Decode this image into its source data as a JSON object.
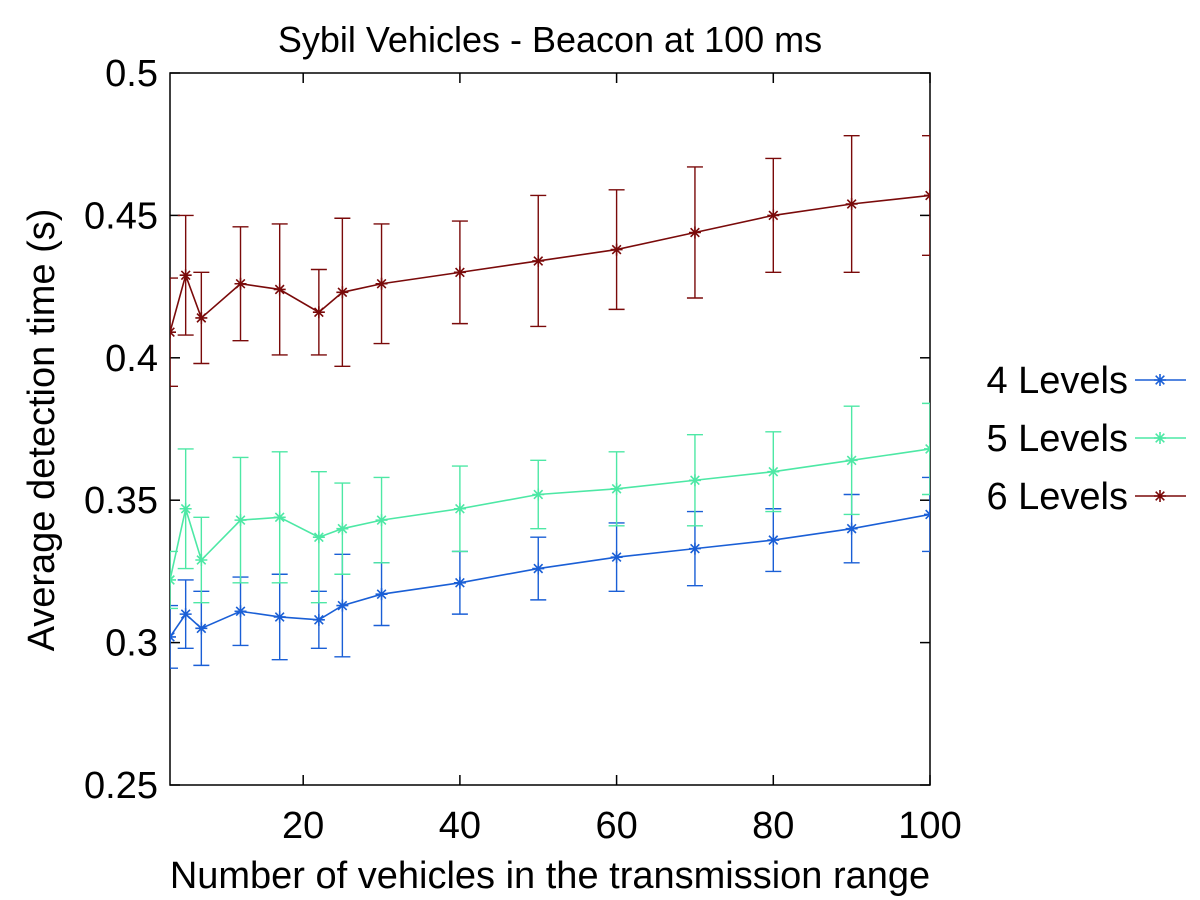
{
  "chart_data": {
    "type": "line",
    "title": "Sybil Vehicles - Beacon at 100 ms",
    "xlabel": "Number of vehicles in the transmission range",
    "ylabel": "Average detection time (s)",
    "xlim": [
      3,
      100
    ],
    "ylim": [
      0.25,
      0.5
    ],
    "x_ticks": [
      20,
      40,
      60,
      80,
      100
    ],
    "y_ticks": [
      0.25,
      0.3,
      0.35,
      0.4,
      0.45,
      0.5
    ],
    "x_tick_labels": [
      "20",
      "40",
      "60",
      "80",
      "100"
    ],
    "y_tick_labels": [
      "0.25",
      "0.3",
      "0.35",
      "0.4",
      "0.45",
      "0.5"
    ],
    "grid": false,
    "legend_position": "right",
    "marker": "star",
    "error_bars": true,
    "x": [
      3,
      5,
      7,
      12,
      17,
      22,
      25,
      30,
      40,
      50,
      60,
      70,
      80,
      90,
      100
    ],
    "series": [
      {
        "name": "4 Levels",
        "color": "#1a5fd6",
        "y": [
          0.302,
          0.31,
          0.305,
          0.311,
          0.309,
          0.308,
          0.313,
          0.317,
          0.321,
          0.326,
          0.33,
          0.333,
          0.336,
          0.34,
          0.345
        ],
        "err": [
          0.011,
          0.012,
          0.013,
          0.012,
          0.015,
          0.01,
          0.018,
          0.011,
          0.011,
          0.011,
          0.012,
          0.013,
          0.011,
          0.012,
          0.013
        ]
      },
      {
        "name": "5 Levels",
        "color": "#4de8a5",
        "y": [
          0.322,
          0.347,
          0.329,
          0.343,
          0.344,
          0.337,
          0.34,
          0.343,
          0.347,
          0.352,
          0.354,
          0.357,
          0.36,
          0.364,
          0.368
        ],
        "err": [
          0.01,
          0.021,
          0.015,
          0.022,
          0.023,
          0.023,
          0.016,
          0.015,
          0.015,
          0.012,
          0.013,
          0.016,
          0.014,
          0.019,
          0.016
        ]
      },
      {
        "name": "6 Levels",
        "color": "#7a0a0a",
        "y": [
          0.409,
          0.429,
          0.414,
          0.426,
          0.424,
          0.416,
          0.423,
          0.426,
          0.43,
          0.434,
          0.438,
          0.444,
          0.45,
          0.454,
          0.457
        ],
        "err": [
          0.019,
          0.021,
          0.016,
          0.02,
          0.023,
          0.015,
          0.026,
          0.021,
          0.018,
          0.023,
          0.021,
          0.023,
          0.02,
          0.024,
          0.021
        ]
      }
    ]
  }
}
